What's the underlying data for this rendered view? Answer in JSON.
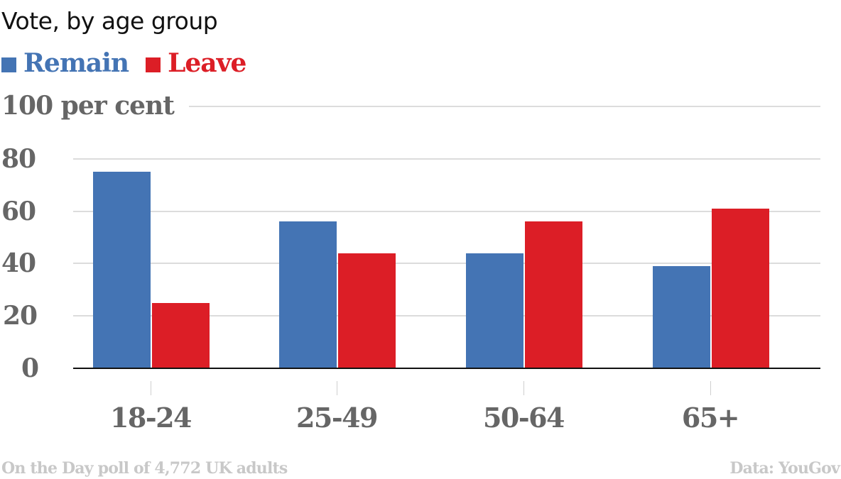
{
  "colors": {
    "remain": "#4474b4",
    "leave": "#dc1e26",
    "axis_text": "#666666",
    "footer_text": "#c8c8c8",
    "grid": "#dcdcdc"
  },
  "header": {
    "title": "Vote, by age group"
  },
  "legend": [
    {
      "label": "Remain",
      "color": "#4474b4"
    },
    {
      "label": "Leave",
      "color": "#dc1e26"
    }
  ],
  "axis": {
    "y_ticks": [
      "100 per cent",
      "80",
      "60",
      "40",
      "20",
      "0"
    ],
    "x_ticks": [
      "18-24",
      "25-49",
      "50-64",
      "65+"
    ]
  },
  "footer": {
    "note": "On the Day poll of 4,772 UK adults",
    "source": "Data: YouGov"
  },
  "chart_data": {
    "type": "bar",
    "title": "Vote, by age group",
    "categories": [
      "18-24",
      "25-49",
      "50-64",
      "65+"
    ],
    "series": [
      {
        "name": "Remain",
        "color": "#4474b4",
        "values": [
          75,
          56,
          44,
          39
        ]
      },
      {
        "name": "Leave",
        "color": "#dc1e26",
        "values": [
          25,
          44,
          56,
          61
        ]
      }
    ],
    "xlabel": "",
    "ylabel": "per cent",
    "ylim": [
      0,
      100
    ],
    "yticks": [
      0,
      20,
      40,
      60,
      80,
      100
    ],
    "grid": true,
    "legend_position": "top-left",
    "annotations": [
      "On the Day poll of 4,772 UK adults",
      "Data: YouGov"
    ]
  }
}
